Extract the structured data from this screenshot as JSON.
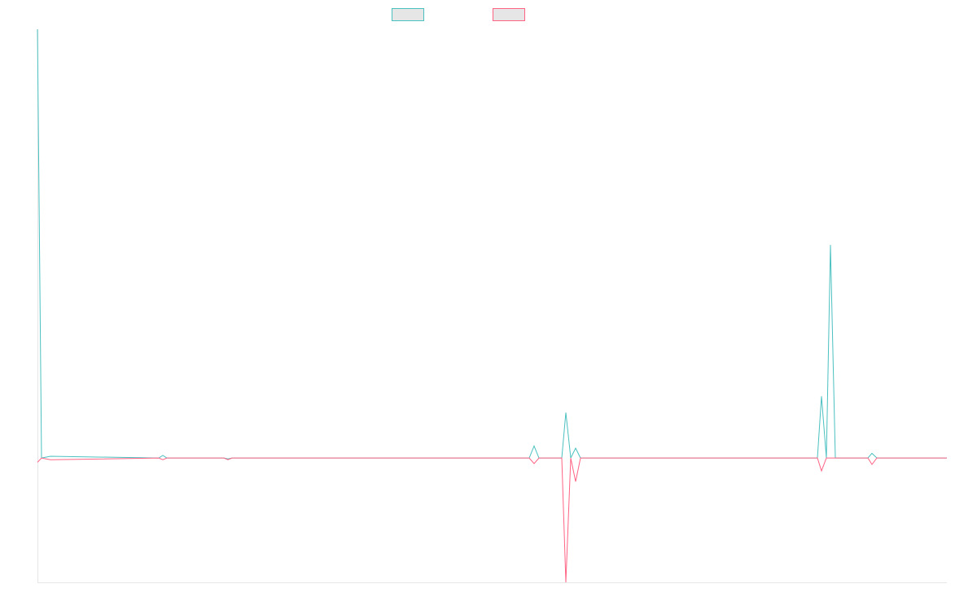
{
  "chart_data": {
    "type": "line",
    "x": [
      0,
      5,
      16,
      149,
      154,
      159,
      229,
      234,
      239,
      604,
      610,
      616,
      644,
      649,
      655,
      661,
      667,
      958,
      963,
      969,
      974,
      980,
      1020,
      1025,
      1031,
      1117
    ],
    "xlim": [
      0,
      1117
    ],
    "ylim": [
      -29,
      100
    ],
    "series": [
      {
        "color": "#4bc0c0",
        "values": [
          100,
          0,
          0.4,
          0,
          0.6,
          0,
          0,
          -0.2,
          0,
          0,
          2.8,
          0,
          0,
          10.6,
          0,
          2.3,
          0,
          0,
          14.4,
          0,
          49.7,
          0,
          0,
          1.1,
          0,
          0
        ]
      },
      {
        "color": "#ff6384",
        "values": [
          -1,
          0,
          -0.4,
          0,
          -0.4,
          0,
          0,
          -0.4,
          0,
          0,
          -1.3,
          0,
          0,
          -29,
          0,
          -5.5,
          0,
          0,
          -3,
          0,
          0,
          0,
          0,
          -1.5,
          0,
          0
        ]
      }
    ]
  }
}
